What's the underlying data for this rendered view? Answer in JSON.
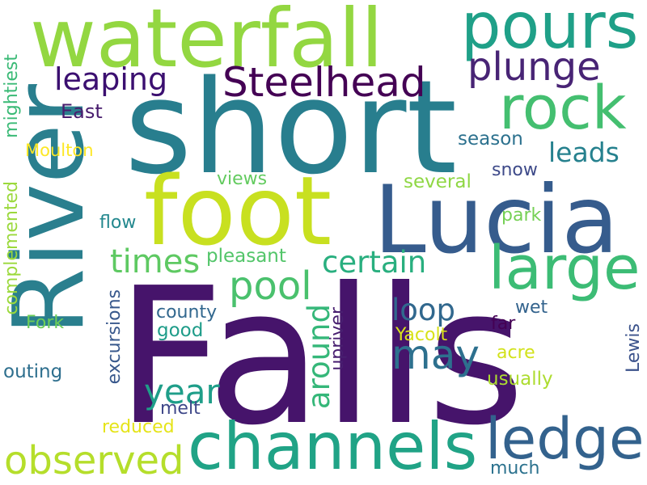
{
  "words": {
    "falls": {
      "text": "Falls",
      "color": "#46146b"
    },
    "short": {
      "text": "short",
      "color": "#287e8e"
    },
    "river": {
      "text": "River",
      "color": "#2a7f8e"
    },
    "waterfall": {
      "text": "waterfall",
      "color": "#93d741"
    },
    "lucia": {
      "text": "Lucia",
      "color": "#365c8d"
    },
    "foot": {
      "text": "foot",
      "color": "#c8e020"
    },
    "channels": {
      "text": "channels",
      "color": "#20a386"
    },
    "ledge": {
      "text": "ledge",
      "color": "#33628d"
    },
    "pours": {
      "text": "pours",
      "color": "#1fa088"
    },
    "rock": {
      "text": "rock",
      "color": "#44bf70"
    },
    "large": {
      "text": "large",
      "color": "#3cbc75"
    },
    "steelhead": {
      "text": "Steelhead",
      "color": "#440154"
    },
    "plunge": {
      "text": "plunge",
      "color": "#482475"
    },
    "leaping": {
      "text": "leaping",
      "color": "#3b0f70"
    },
    "observed": {
      "text": "observed",
      "color": "#b5de2b"
    },
    "pool": {
      "text": "pool",
      "color": "#4ac16d"
    },
    "may": {
      "text": "may",
      "color": "#2d708e"
    },
    "times": {
      "text": "times",
      "color": "#5ec962"
    },
    "certain": {
      "text": "certain",
      "color": "#29af7f"
    },
    "year": {
      "text": "year",
      "color": "#1f9e89"
    },
    "around": {
      "text": "around",
      "color": "#35b779"
    },
    "loop": {
      "text": "loop",
      "color": "#31688e"
    },
    "leads": {
      "text": "leads",
      "color": "#26818e"
    },
    "east": {
      "text": "East",
      "color": "#481c6e"
    },
    "moulton": {
      "text": "Moulton",
      "color": "#fde725"
    },
    "mightiest": {
      "text": "mightiest",
      "color": "#3aba76"
    },
    "complemented": {
      "text": "complemented",
      "color": "#9bd93c"
    },
    "season": {
      "text": "season",
      "color": "#2c718e"
    },
    "snow": {
      "text": "snow",
      "color": "#3e4a89"
    },
    "several": {
      "text": "several",
      "color": "#8fd744"
    },
    "views": {
      "text": "views",
      "color": "#63cb5f"
    },
    "flow": {
      "text": "flow",
      "color": "#23888e"
    },
    "park": {
      "text": "park",
      "color": "#75d054"
    },
    "pleasant": {
      "text": "pleasant",
      "color": "#52c569"
    },
    "county": {
      "text": "county",
      "color": "#31678e"
    },
    "good": {
      "text": "good",
      "color": "#1e9c89"
    },
    "fork": {
      "text": "Fork",
      "color": "#6ece58"
    },
    "outing": {
      "text": "outing",
      "color": "#2e6f8e"
    },
    "excursions": {
      "text": "excursions",
      "color": "#38588c"
    },
    "melt": {
      "text": "melt",
      "color": "#3f4889"
    },
    "reduced": {
      "text": "reduced",
      "color": "#e5e419"
    },
    "upriver": {
      "text": "upriver",
      "color": "#481f70"
    },
    "yacolt": {
      "text": "Yacolt",
      "color": "#d8e219"
    },
    "wet": {
      "text": "wet",
      "color": "#33638d"
    },
    "far": {
      "text": "far",
      "color": "#440154"
    },
    "acre": {
      "text": "acre",
      "color": "#d2e21b"
    },
    "usually": {
      "text": "usually",
      "color": "#addc30"
    },
    "lewis": {
      "text": "Lewis",
      "color": "#3b528b"
    },
    "much": {
      "text": "much",
      "color": "#2c728e"
    }
  }
}
